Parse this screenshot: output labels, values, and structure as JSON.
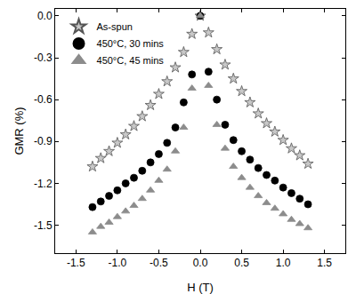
{
  "chart_data": {
    "type": "scatter",
    "x_label": "H (T)",
    "y_label": "GMR (%)",
    "x": [
      -1.3,
      -1.2,
      -1.1,
      -1.0,
      -0.9,
      -0.8,
      -0.7,
      -0.6,
      -0.5,
      -0.4,
      -0.3,
      -0.2,
      -0.1,
      0.0,
      0.1,
      0.2,
      0.3,
      0.4,
      0.5,
      0.6,
      0.7,
      0.8,
      0.9,
      1.0,
      1.1,
      1.2,
      1.3
    ],
    "series": [
      {
        "name": "As-spun",
        "color": "#c8c8c8",
        "marker": "star",
        "values": [
          -1.08,
          -1.02,
          -0.97,
          -0.91,
          -0.85,
          -0.79,
          -0.72,
          -0.64,
          -0.56,
          -0.47,
          -0.37,
          -0.26,
          -0.13,
          0.0,
          -0.12,
          -0.24,
          -0.35,
          -0.45,
          -0.54,
          -0.62,
          -0.7,
          -0.77,
          -0.83,
          -0.89,
          -0.95,
          -1.0,
          -1.06
        ]
      },
      {
        "name": "450°C, 30 mins",
        "color": "#000000",
        "marker": "circle",
        "values": [
          -1.37,
          -1.33,
          -1.29,
          -1.25,
          -1.2,
          -1.16,
          -1.11,
          -1.05,
          -0.99,
          -0.91,
          -0.8,
          -0.62,
          -0.42,
          0.0,
          -0.4,
          -0.6,
          -0.78,
          -0.89,
          -0.97,
          -1.03,
          -1.09,
          -1.14,
          -1.18,
          -1.23,
          -1.27,
          -1.31,
          -1.35
        ]
      },
      {
        "name": "450°C, 45 mins",
        "color": "#8c8c8c",
        "marker": "triangle-up",
        "values": [
          -1.55,
          -1.51,
          -1.48,
          -1.44,
          -1.4,
          -1.36,
          -1.31,
          -1.25,
          -1.18,
          -1.1,
          -0.97,
          -0.8,
          -0.52,
          0.0,
          -0.5,
          -0.78,
          -0.95,
          -1.08,
          -1.16,
          -1.23,
          -1.29,
          -1.34,
          -1.38,
          -1.42,
          -1.46,
          -1.49,
          -1.52
        ]
      }
    ],
    "xlim": [
      -1.75,
      1.75
    ],
    "xticks": [
      -1.5,
      {
        "value": -1,
        "label": "-1.0"
      },
      -0.5,
      {
        "value": 0,
        "label": "0.0"
      },
      0.5,
      {
        "value": 1,
        "label": "1.0"
      },
      1.5
    ],
    "ylim": [
      -1.7,
      0.05
    ],
    "yticks": [
      {
        "value": 0,
        "label": "0.0"
      },
      -0.3,
      -0.6,
      -0.9,
      -1.2,
      -1.5
    ],
    "grid": false,
    "legend": "top-left"
  }
}
